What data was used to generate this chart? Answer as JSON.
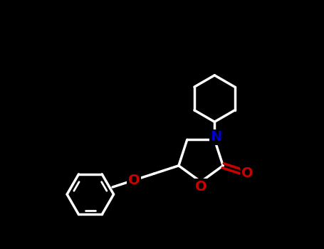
{
  "background_color": "#000000",
  "bond_color": "#ffffff",
  "N_color": "#0000cc",
  "O_color": "#cc0000",
  "line_width": 2.5,
  "figsize": [
    4.55,
    3.5
  ],
  "dpi": 100,
  "xlim": [
    0,
    10
  ],
  "ylim": [
    0,
    7.7
  ]
}
